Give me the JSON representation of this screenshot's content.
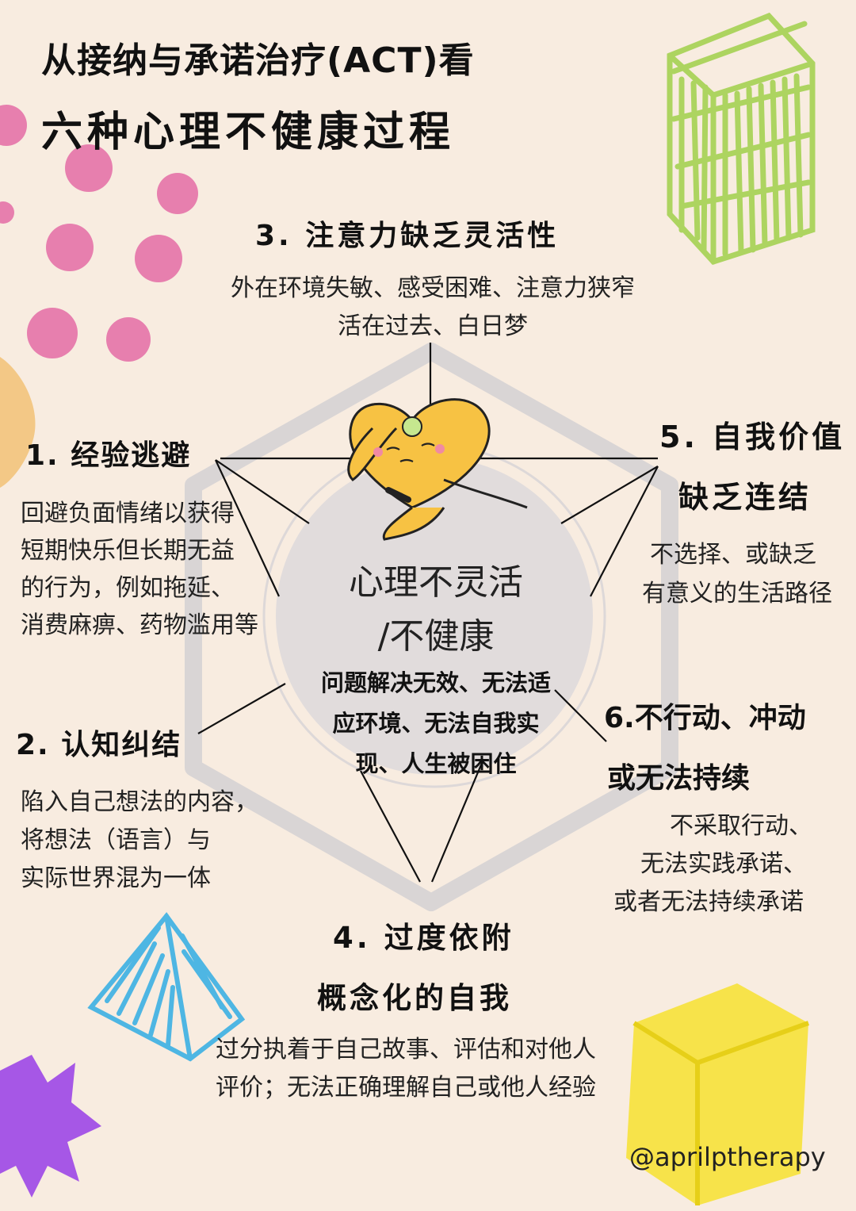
{
  "title": {
    "line1": "从接纳与承诺治疗(ACT)看",
    "line2": "六种心理不健康过程"
  },
  "center": {
    "line1": "心理不灵活",
    "line2": "/不健康",
    "desc": [
      "问题解决无效、无法适",
      "应环境、无法自我实",
      "现、人生被困住"
    ]
  },
  "processes": [
    {
      "id": 1,
      "title_lines": [
        "1. 经验逃避"
      ],
      "desc_lines": [
        "回避负面情绪以获得",
        "短期快乐但长期无益",
        "的行为，例如拖延、",
        "消费麻痹、药物滥用等"
      ]
    },
    {
      "id": 2,
      "title_lines": [
        "2. 认知纠结"
      ],
      "desc_lines": [
        "陷入自己想法的内容，",
        "将想法（语言）与",
        "实际世界混为一体"
      ]
    },
    {
      "id": 3,
      "title_lines": [
        "3. 注意力缺乏灵活性"
      ],
      "desc_lines": [
        "外在环境失敏、感受困难、注意力狭窄",
        "活在过去、白日梦"
      ]
    },
    {
      "id": 4,
      "title_lines": [
        "4. 过度依附",
        "概念化的自我"
      ],
      "desc_lines": [
        "过分执着于自己故事、评估和对他人",
        "评价；无法正确理解自己或他人经验"
      ]
    },
    {
      "id": 5,
      "title_lines": [
        "5. 自我价值",
        "缺乏连结"
      ],
      "desc_lines": [
        "不选择、或缺乏",
        "有意义的生活路径"
      ]
    },
    {
      "id": 6,
      "title_lines": [
        "6.不行动、冲动",
        "或无法持续"
      ],
      "desc_lines": [
        "不采取行动、",
        "无法实践承诺、",
        "或者无法持续承诺"
      ]
    }
  ],
  "handle": "@aprilptherapy",
  "colors": {
    "background": "#f8ece0",
    "hexagon": "#d9d5d5",
    "circle": "#e1dcdc",
    "pink": "#e77fae",
    "green": "#a9d35a",
    "blue": "#4eb6e3",
    "yellow": "#f7e22f",
    "purple": "#a657e6",
    "orange": "#f2c275",
    "heart": "#f7c243"
  }
}
